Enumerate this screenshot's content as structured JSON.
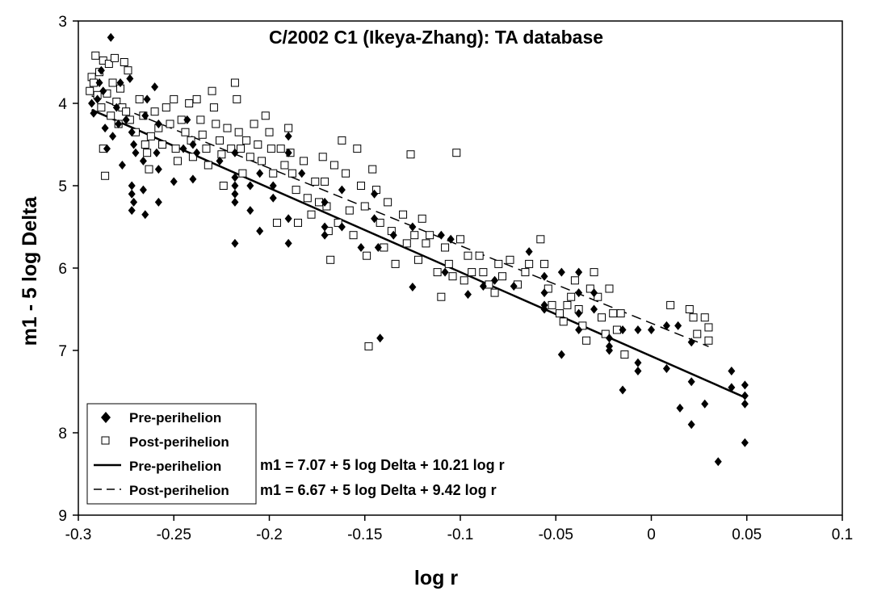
{
  "chart_data": {
    "type": "scatter",
    "title": "C/2002 C1 (Ikeya-Zhang): TA database",
    "xlabel": "log r",
    "ylabel": "m1 - 5 log Delta",
    "xlim": [
      -0.3,
      0.1
    ],
    "ylim": [
      3,
      9
    ],
    "y_inverted": true,
    "x_ticks": [
      "-0.3",
      "-0.25",
      "-0.2",
      "-0.15",
      "-0.1",
      "-0.05",
      "0",
      "0.05",
      "0.1"
    ],
    "y_ticks": [
      "3",
      "4",
      "5",
      "6",
      "7",
      "8",
      "9"
    ],
    "grid": false,
    "legend_position": "bottom-left",
    "series": [
      {
        "name": "Pre-perihelion",
        "marker": "filled-diamond",
        "points": [
          [
            -0.293,
            4.0
          ],
          [
            -0.292,
            4.12
          ],
          [
            -0.29,
            3.95
          ],
          [
            -0.289,
            3.75
          ],
          [
            -0.288,
            3.6
          ],
          [
            -0.287,
            3.85
          ],
          [
            -0.286,
            4.3
          ],
          [
            -0.285,
            4.55
          ],
          [
            -0.283,
            3.2
          ],
          [
            -0.282,
            4.4
          ],
          [
            -0.28,
            4.05
          ],
          [
            -0.279,
            4.25
          ],
          [
            -0.278,
            3.75
          ],
          [
            -0.277,
            4.75
          ],
          [
            -0.275,
            4.2
          ],
          [
            -0.273,
            3.7
          ],
          [
            -0.272,
            4.35
          ],
          [
            -0.271,
            4.5
          ],
          [
            -0.27,
            4.6
          ],
          [
            -0.272,
            5.0
          ],
          [
            -0.272,
            5.1
          ],
          [
            -0.271,
            5.2
          ],
          [
            -0.272,
            5.3
          ],
          [
            -0.266,
            4.7
          ],
          [
            -0.265,
            4.15
          ],
          [
            -0.264,
            3.95
          ],
          [
            -0.266,
            5.05
          ],
          [
            -0.265,
            5.35
          ],
          [
            -0.26,
            3.8
          ],
          [
            -0.258,
            4.25
          ],
          [
            -0.259,
            4.6
          ],
          [
            -0.258,
            4.8
          ],
          [
            -0.258,
            5.2
          ],
          [
            -0.25,
            4.95
          ],
          [
            -0.245,
            4.55
          ],
          [
            -0.243,
            4.2
          ],
          [
            -0.24,
            4.5
          ],
          [
            -0.24,
            4.92
          ],
          [
            -0.238,
            4.6
          ],
          [
            -0.226,
            4.7
          ],
          [
            -0.218,
            4.6
          ],
          [
            -0.218,
            4.9
          ],
          [
            -0.218,
            5.0
          ],
          [
            -0.218,
            5.1
          ],
          [
            -0.218,
            5.2
          ],
          [
            -0.218,
            5.7
          ],
          [
            -0.21,
            5.0
          ],
          [
            -0.21,
            5.3
          ],
          [
            -0.205,
            4.85
          ],
          [
            -0.205,
            5.55
          ],
          [
            -0.198,
            5.0
          ],
          [
            -0.198,
            5.15
          ],
          [
            -0.19,
            4.4
          ],
          [
            -0.19,
            4.6
          ],
          [
            -0.19,
            5.4
          ],
          [
            -0.19,
            5.7
          ],
          [
            -0.183,
            4.85
          ],
          [
            -0.171,
            5.2
          ],
          [
            -0.171,
            5.5
          ],
          [
            -0.171,
            5.6
          ],
          [
            -0.162,
            5.05
          ],
          [
            -0.162,
            5.5
          ],
          [
            -0.152,
            5.75
          ],
          [
            -0.145,
            5.1
          ],
          [
            -0.145,
            5.4
          ],
          [
            -0.143,
            5.75
          ],
          [
            -0.142,
            6.85
          ],
          [
            -0.135,
            5.6
          ],
          [
            -0.125,
            5.5
          ],
          [
            -0.125,
            6.23
          ],
          [
            -0.11,
            5.6
          ],
          [
            -0.108,
            6.05
          ],
          [
            -0.105,
            5.65
          ],
          [
            -0.096,
            6.32
          ],
          [
            -0.088,
            6.22
          ],
          [
            -0.082,
            6.15
          ],
          [
            -0.072,
            6.22
          ],
          [
            -0.064,
            5.8
          ],
          [
            -0.056,
            6.1
          ],
          [
            -0.056,
            6.3
          ],
          [
            -0.056,
            6.45
          ],
          [
            -0.056,
            6.5
          ],
          [
            -0.047,
            6.05
          ],
          [
            -0.047,
            7.05
          ],
          [
            -0.038,
            6.05
          ],
          [
            -0.038,
            6.3
          ],
          [
            -0.038,
            6.55
          ],
          [
            -0.038,
            6.75
          ],
          [
            -0.03,
            6.3
          ],
          [
            -0.03,
            6.5
          ],
          [
            -0.022,
            6.85
          ],
          [
            -0.022,
            6.95
          ],
          [
            -0.022,
            7.0
          ],
          [
            -0.015,
            6.75
          ],
          [
            -0.015,
            7.48
          ],
          [
            -0.007,
            6.75
          ],
          [
            -0.007,
            7.15
          ],
          [
            -0.007,
            7.25
          ],
          [
            0.0,
            6.75
          ],
          [
            0.008,
            6.7
          ],
          [
            0.008,
            7.22
          ],
          [
            0.014,
            6.7
          ],
          [
            0.015,
            7.7
          ],
          [
            0.021,
            6.9
          ],
          [
            0.021,
            7.38
          ],
          [
            0.021,
            7.9
          ],
          [
            0.028,
            7.65
          ],
          [
            0.035,
            8.35
          ],
          [
            0.042,
            7.25
          ],
          [
            0.042,
            7.45
          ],
          [
            0.049,
            7.42
          ],
          [
            0.049,
            7.55
          ],
          [
            0.049,
            7.65
          ],
          [
            0.049,
            8.12
          ]
        ]
      },
      {
        "name": "Post-perihelion",
        "marker": "hollow-square",
        "points": [
          [
            -0.294,
            3.85
          ],
          [
            -0.293,
            3.68
          ],
          [
            -0.292,
            3.75
          ],
          [
            -0.291,
            3.42
          ],
          [
            -0.29,
            3.9
          ],
          [
            -0.289,
            3.62
          ],
          [
            -0.288,
            4.05
          ],
          [
            -0.287,
            3.48
          ],
          [
            -0.287,
            4.55
          ],
          [
            -0.286,
            4.88
          ],
          [
            -0.285,
            3.88
          ],
          [
            -0.284,
            3.52
          ],
          [
            -0.283,
            4.15
          ],
          [
            -0.282,
            3.75
          ],
          [
            -0.281,
            3.45
          ],
          [
            -0.28,
            3.98
          ],
          [
            -0.279,
            4.25
          ],
          [
            -0.278,
            3.82
          ],
          [
            -0.277,
            4.05
          ],
          [
            -0.276,
            3.5
          ],
          [
            -0.275,
            4.1
          ],
          [
            -0.274,
            3.6
          ],
          [
            -0.273,
            4.2
          ],
          [
            -0.27,
            4.35
          ],
          [
            -0.268,
            3.95
          ],
          [
            -0.266,
            4.15
          ],
          [
            -0.265,
            4.5
          ],
          [
            -0.264,
            4.6
          ],
          [
            -0.263,
            4.8
          ],
          [
            -0.262,
            4.4
          ],
          [
            -0.26,
            4.1
          ],
          [
            -0.258,
            4.3
          ],
          [
            -0.256,
            4.5
          ],
          [
            -0.254,
            4.05
          ],
          [
            -0.252,
            4.25
          ],
          [
            -0.25,
            3.95
          ],
          [
            -0.249,
            4.55
          ],
          [
            -0.248,
            4.7
          ],
          [
            -0.246,
            4.2
          ],
          [
            -0.244,
            4.35
          ],
          [
            -0.242,
            4.0
          ],
          [
            -0.241,
            4.45
          ],
          [
            -0.24,
            4.65
          ],
          [
            -0.238,
            3.95
          ],
          [
            -0.236,
            4.2
          ],
          [
            -0.235,
            4.38
          ],
          [
            -0.233,
            4.55
          ],
          [
            -0.232,
            4.75
          ],
          [
            -0.23,
            3.85
          ],
          [
            -0.229,
            4.05
          ],
          [
            -0.228,
            4.25
          ],
          [
            -0.226,
            4.45
          ],
          [
            -0.225,
            4.62
          ],
          [
            -0.224,
            5.0
          ],
          [
            -0.222,
            4.3
          ],
          [
            -0.22,
            4.55
          ],
          [
            -0.218,
            3.75
          ],
          [
            -0.217,
            3.95
          ],
          [
            -0.216,
            4.35
          ],
          [
            -0.215,
            4.55
          ],
          [
            -0.214,
            4.85
          ],
          [
            -0.212,
            4.45
          ],
          [
            -0.21,
            4.65
          ],
          [
            -0.208,
            4.25
          ],
          [
            -0.206,
            4.5
          ],
          [
            -0.204,
            4.7
          ],
          [
            -0.202,
            4.15
          ],
          [
            -0.2,
            4.35
          ],
          [
            -0.199,
            4.55
          ],
          [
            -0.198,
            4.85
          ],
          [
            -0.196,
            5.45
          ],
          [
            -0.194,
            4.55
          ],
          [
            -0.192,
            4.75
          ],
          [
            -0.19,
            4.3
          ],
          [
            -0.189,
            4.6
          ],
          [
            -0.188,
            4.85
          ],
          [
            -0.186,
            5.05
          ],
          [
            -0.185,
            5.45
          ],
          [
            -0.182,
            4.7
          ],
          [
            -0.18,
            5.15
          ],
          [
            -0.178,
            5.35
          ],
          [
            -0.176,
            4.95
          ],
          [
            -0.174,
            5.2
          ],
          [
            -0.172,
            4.65
          ],
          [
            -0.171,
            4.95
          ],
          [
            -0.17,
            5.25
          ],
          [
            -0.169,
            5.55
          ],
          [
            -0.168,
            5.9
          ],
          [
            -0.166,
            4.75
          ],
          [
            -0.164,
            5.45
          ],
          [
            -0.162,
            4.45
          ],
          [
            -0.16,
            4.85
          ],
          [
            -0.158,
            5.3
          ],
          [
            -0.156,
            5.6
          ],
          [
            -0.154,
            4.55
          ],
          [
            -0.152,
            5.0
          ],
          [
            -0.15,
            5.25
          ],
          [
            -0.149,
            5.85
          ],
          [
            -0.148,
            6.95
          ],
          [
            -0.146,
            4.8
          ],
          [
            -0.144,
            5.05
          ],
          [
            -0.142,
            5.45
          ],
          [
            -0.14,
            5.75
          ],
          [
            -0.138,
            5.2
          ],
          [
            -0.136,
            5.55
          ],
          [
            -0.134,
            5.95
          ],
          [
            -0.13,
            5.35
          ],
          [
            -0.128,
            5.7
          ],
          [
            -0.126,
            4.62
          ],
          [
            -0.124,
            5.6
          ],
          [
            -0.122,
            5.9
          ],
          [
            -0.12,
            5.4
          ],
          [
            -0.118,
            5.7
          ],
          [
            -0.116,
            5.6
          ],
          [
            -0.112,
            6.05
          ],
          [
            -0.11,
            6.35
          ],
          [
            -0.108,
            5.75
          ],
          [
            -0.106,
            5.95
          ],
          [
            -0.104,
            6.1
          ],
          [
            -0.102,
            4.6
          ],
          [
            -0.1,
            5.65
          ],
          [
            -0.098,
            6.15
          ],
          [
            -0.096,
            5.85
          ],
          [
            -0.094,
            6.05
          ],
          [
            -0.09,
            5.85
          ],
          [
            -0.088,
            6.05
          ],
          [
            -0.085,
            6.2
          ],
          [
            -0.082,
            6.3
          ],
          [
            -0.08,
            5.95
          ],
          [
            -0.078,
            6.1
          ],
          [
            -0.074,
            5.9
          ],
          [
            -0.07,
            6.2
          ],
          [
            -0.066,
            6.05
          ],
          [
            -0.064,
            5.95
          ],
          [
            -0.058,
            5.65
          ],
          [
            -0.056,
            5.95
          ],
          [
            -0.054,
            6.25
          ],
          [
            -0.052,
            6.45
          ],
          [
            -0.048,
            6.55
          ],
          [
            -0.046,
            6.65
          ],
          [
            -0.044,
            6.45
          ],
          [
            -0.042,
            6.35
          ],
          [
            -0.04,
            6.15
          ],
          [
            -0.038,
            6.5
          ],
          [
            -0.036,
            6.7
          ],
          [
            -0.034,
            6.88
          ],
          [
            -0.032,
            6.25
          ],
          [
            -0.03,
            6.05
          ],
          [
            -0.028,
            6.35
          ],
          [
            -0.026,
            6.6
          ],
          [
            -0.024,
            6.8
          ],
          [
            -0.022,
            6.25
          ],
          [
            -0.02,
            6.55
          ],
          [
            -0.018,
            6.75
          ],
          [
            -0.016,
            6.55
          ],
          [
            -0.014,
            7.05
          ],
          [
            0.01,
            6.45
          ],
          [
            0.02,
            6.5
          ],
          [
            0.022,
            6.6
          ],
          [
            0.024,
            6.8
          ],
          [
            0.028,
            6.6
          ],
          [
            0.03,
            6.72
          ],
          [
            0.03,
            6.88
          ]
        ]
      }
    ],
    "fits": [
      {
        "name": "Pre-perihelion",
        "style": "solid",
        "x_range": [
          -0.293,
          0.049
        ],
        "intercept": 7.07,
        "slope": 10.21,
        "equation": "m1 = 7.07 + 5 log Delta + 10.21 log r"
      },
      {
        "name": "Post-perihelion",
        "style": "dashed",
        "x_range": [
          -0.293,
          0.03
        ],
        "intercept": 6.67,
        "slope": 9.42,
        "equation": "m1 = 6.67 + 5 log Delta + 9.42 log r"
      }
    ]
  }
}
